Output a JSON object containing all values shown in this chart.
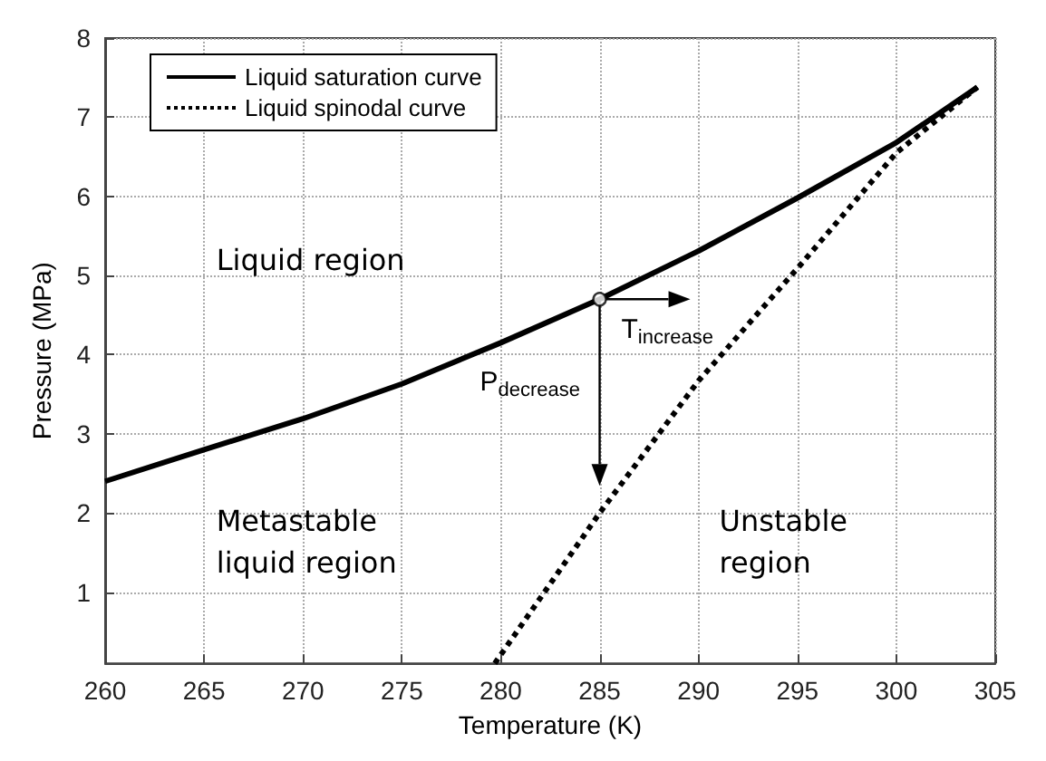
{
  "chart_data": {
    "type": "line",
    "xlabel": "Temperature (K)",
    "ylabel": "Pressure (MPa)",
    "xlim": [
      260,
      305
    ],
    "xticks": [
      260,
      265,
      270,
      275,
      280,
      285,
      290,
      295,
      300,
      305
    ],
    "ylim": [
      0.1,
      8
    ],
    "yticks": [
      1,
      2,
      3,
      4,
      5,
      6,
      7,
      8
    ],
    "grid": true,
    "legend": "top left",
    "marker": "none",
    "series": [
      {
        "name": "Liquid saturation curve",
        "color": "#000000",
        "line_style": "solid",
        "x": [
          260,
          265,
          270,
          275,
          280,
          285,
          290,
          295,
          300,
          304.1
        ],
        "values": [
          2.4,
          2.8,
          3.19,
          3.63,
          4.15,
          4.7,
          5.31,
          5.98,
          6.68,
          7.38
        ]
      },
      {
        "name": "Liquid spinodal curve",
        "color": "#000000",
        "line_style": "dotted",
        "x": [
          279.7,
          285,
          290,
          295,
          300,
          304.1
        ],
        "values": [
          0.1,
          2.0,
          3.67,
          5.09,
          6.55,
          7.38
        ]
      },
      {
        "type": "scatter",
        "marker": "circle",
        "color": "#000000",
        "x": [
          285
        ],
        "values": [
          4.7
        ]
      }
    ],
    "annotations": [
      "Liquid region",
      "Metastable\nliquid region",
      "Unstable\nregion",
      "T$_{increase}$",
      "P$_{decrease}$"
    ]
  }
}
